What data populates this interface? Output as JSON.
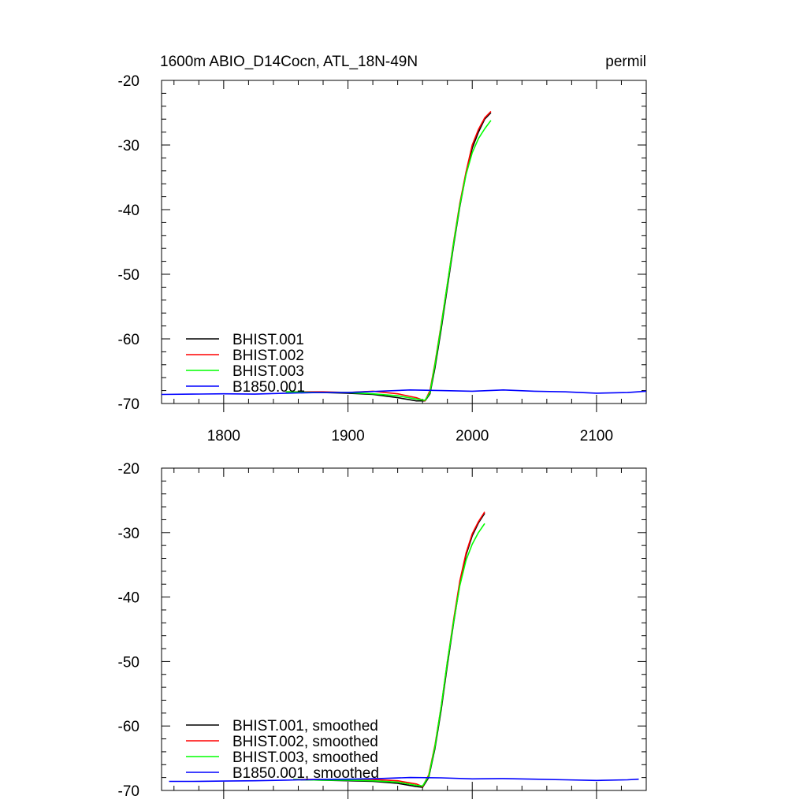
{
  "chart_data": [
    {
      "type": "line",
      "title_left": "1600m ABIO_D14Cocn, ATL_18N-49N",
      "title_right": "permil",
      "xlim": [
        1750,
        2140
      ],
      "ylim": [
        -70,
        -20
      ],
      "xticks": [
        1800,
        1900,
        2000,
        2100
      ],
      "yticks": [
        -20,
        -30,
        -40,
        -50,
        -60,
        -70
      ],
      "show_xtick_labels": true,
      "legend": "bottom-left",
      "series": [
        {
          "name": "BHIST.001",
          "color": "#000000",
          "x": [
            1850,
            1880,
            1900,
            1920,
            1940,
            1955,
            1962,
            1966,
            1970,
            1975,
            1980,
            1985,
            1990,
            1995,
            2000,
            2005,
            2010,
            2015
          ],
          "y": [
            -68.2,
            -68.3,
            -68.4,
            -68.6,
            -69.1,
            -69.6,
            -69.6,
            -68.5,
            -64.5,
            -58.5,
            -52.0,
            -45.5,
            -39.5,
            -34.5,
            -30.5,
            -28.0,
            -26.0,
            -25.0
          ]
        },
        {
          "name": "BHIST.002",
          "color": "#ff0000",
          "x": [
            1850,
            1880,
            1900,
            1920,
            1940,
            1955,
            1962,
            1966,
            1970,
            1975,
            1980,
            1985,
            1990,
            1995,
            2000,
            2005,
            2010,
            2015
          ],
          "y": [
            -68.2,
            -68.2,
            -68.3,
            -68.1,
            -68.5,
            -69.1,
            -69.6,
            -68.0,
            -63.8,
            -57.8,
            -51.5,
            -45.0,
            -39.0,
            -34.2,
            -30.0,
            -27.6,
            -25.8,
            -24.8
          ]
        },
        {
          "name": "BHIST.003",
          "color": "#00ff00",
          "x": [
            1850,
            1880,
            1900,
            1920,
            1940,
            1955,
            1962,
            1966,
            1970,
            1975,
            1980,
            1985,
            1990,
            1995,
            2000,
            2005,
            2010,
            2015
          ],
          "y": [
            -68.2,
            -68.3,
            -68.3,
            -68.5,
            -68.8,
            -69.3,
            -69.5,
            -68.3,
            -64.0,
            -58.0,
            -51.5,
            -45.2,
            -39.3,
            -34.6,
            -31.2,
            -29.0,
            -27.5,
            -26.2
          ]
        },
        {
          "name": "B1850.001",
          "color": "#0000ff",
          "x": [
            1750,
            1775,
            1800,
            1825,
            1850,
            1875,
            1900,
            1925,
            1950,
            1975,
            2000,
            2025,
            2050,
            2075,
            2100,
            2125,
            2140
          ],
          "y": [
            -68.6,
            -68.55,
            -68.5,
            -68.55,
            -68.4,
            -68.3,
            -68.3,
            -68.1,
            -67.9,
            -68.0,
            -68.1,
            -67.9,
            -68.1,
            -68.2,
            -68.4,
            -68.3,
            -68.1
          ]
        }
      ]
    },
    {
      "type": "line",
      "xlim": [
        1750,
        2140
      ],
      "ylim": [
        -70,
        -20
      ],
      "xticks": [
        1800,
        1900,
        2000,
        2100
      ],
      "yticks": [
        -20,
        -30,
        -40,
        -50,
        -60,
        -70
      ],
      "show_xtick_labels": false,
      "legend": "bottom-left",
      "series": [
        {
          "name": "BHIST.001, smoothed",
          "color": "#000000",
          "x": [
            1856,
            1880,
            1900,
            1920,
            1940,
            1955,
            1960,
            1965,
            1970,
            1975,
            1980,
            1985,
            1990,
            1995,
            2000,
            2005,
            2010
          ],
          "y": [
            -68.3,
            -68.4,
            -68.5,
            -68.6,
            -68.9,
            -69.4,
            -69.5,
            -68.0,
            -63.5,
            -57.5,
            -50.5,
            -44.0,
            -38.0,
            -33.5,
            -30.5,
            -28.5,
            -27.0
          ]
        },
        {
          "name": "BHIST.002, smoothed",
          "color": "#ff0000",
          "x": [
            1856,
            1880,
            1900,
            1920,
            1940,
            1955,
            1960,
            1965,
            1970,
            1975,
            1980,
            1985,
            1990,
            1995,
            2000,
            2005,
            2010
          ],
          "y": [
            -68.3,
            -68.3,
            -68.3,
            -68.3,
            -68.5,
            -69.0,
            -69.4,
            -67.6,
            -63.0,
            -57.0,
            -50.0,
            -43.5,
            -37.5,
            -33.2,
            -30.2,
            -28.3,
            -26.8
          ]
        },
        {
          "name": "BHIST.003, smoothed",
          "color": "#00ff00",
          "x": [
            1856,
            1880,
            1900,
            1920,
            1940,
            1955,
            1960,
            1965,
            1970,
            1975,
            1980,
            1985,
            1990,
            1995,
            2000,
            2005,
            2010
          ],
          "y": [
            -68.3,
            -68.4,
            -68.4,
            -68.5,
            -68.7,
            -69.2,
            -69.3,
            -67.8,
            -63.2,
            -57.0,
            -50.0,
            -43.8,
            -38.2,
            -34.3,
            -31.8,
            -30.0,
            -28.6
          ]
        },
        {
          "name": "B1850.001, smoothed",
          "color": "#0000ff",
          "x": [
            1756,
            1775,
            1800,
            1825,
            1850,
            1875,
            1900,
            1925,
            1950,
            1975,
            2000,
            2025,
            2050,
            2075,
            2100,
            2125,
            2134
          ],
          "y": [
            -68.6,
            -68.6,
            -68.55,
            -68.5,
            -68.4,
            -68.3,
            -68.25,
            -68.15,
            -68.0,
            -68.05,
            -68.2,
            -68.15,
            -68.25,
            -68.35,
            -68.45,
            -68.35,
            -68.25
          ]
        }
      ]
    }
  ]
}
